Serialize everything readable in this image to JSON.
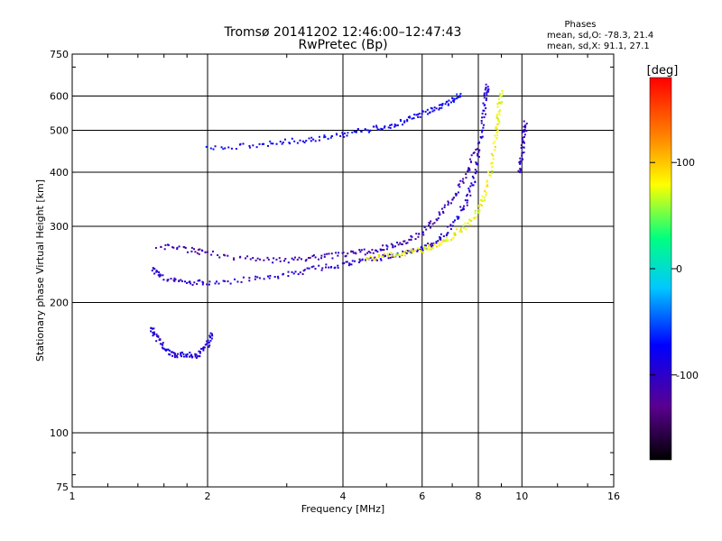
{
  "header": {
    "title": "Tromsø 20141202 12:46:00–12:47:43",
    "subtitle": "RwPretec (Bp)",
    "stats_title": "Phases",
    "stats_o": "mean, sd,O: -78.3, 21.4",
    "stats_x": "mean, sd,X:  91.1, 27.1"
  },
  "colorbar": {
    "unit_label": "[deg]",
    "ticks": [
      {
        "value": 100,
        "label": "100"
      },
      {
        "value": 0,
        "label": "0"
      },
      {
        "value": -100,
        "label": "-100"
      }
    ],
    "range": [
      -180,
      180
    ]
  },
  "chart_data": {
    "type": "scatter",
    "title": "Tromsø 20141202 12:46:00–12:47:43",
    "subtitle": "RwPretec (Bp)",
    "xlabel": "Frequency [MHz]",
    "ylabel": "Stationary phase Virtual Height [km]",
    "xscale": "log",
    "yscale": "log",
    "xlim": [
      1,
      16
    ],
    "ylim": [
      75,
      750
    ],
    "xticks": [
      1,
      2,
      4,
      6,
      8,
      10,
      16
    ],
    "xtick_labels": [
      "1",
      "2",
      "4",
      "6",
      "8",
      "10",
      "16"
    ],
    "yticks": [
      75,
      100,
      200,
      300,
      400,
      500,
      600,
      750
    ],
    "ytick_labels": [
      "75",
      "100",
      "200",
      "300",
      "400",
      "500",
      "600",
      "750"
    ],
    "grid": true,
    "colorbar_label": "[deg]",
    "color_scale": [
      "#000000",
      "#5a0090",
      "#0000ff",
      "#00c8ff",
      "#00ff80",
      "#ffff00",
      "#ff8000",
      "#ff0000"
    ],
    "traces": [
      {
        "id": "E-region echoes",
        "phase": -90,
        "points": [
          [
            1.5,
            175
          ],
          [
            1.55,
            165
          ],
          [
            1.62,
            155
          ],
          [
            1.7,
            150
          ],
          [
            1.8,
            152
          ],
          [
            1.9,
            150
          ],
          [
            2.0,
            160
          ],
          [
            2.05,
            170
          ]
        ]
      },
      {
        "id": "F2 O-mode lower",
        "phase": -95,
        "points": [
          [
            1.5,
            240
          ],
          [
            1.6,
            228
          ],
          [
            1.8,
            222
          ],
          [
            2.0,
            222
          ],
          [
            2.5,
            226
          ],
          [
            3.0,
            232
          ],
          [
            3.5,
            240
          ],
          [
            4.0,
            245
          ],
          [
            4.5,
            250
          ],
          [
            5.0,
            255
          ],
          [
            5.5,
            260
          ],
          [
            6.0,
            266
          ],
          [
            6.5,
            278
          ],
          [
            7.0,
            300
          ],
          [
            7.5,
            340
          ],
          [
            7.8,
            380
          ],
          [
            8.0,
            440
          ],
          [
            8.2,
            520
          ],
          [
            8.3,
            600
          ],
          [
            8.4,
            640
          ]
        ]
      },
      {
        "id": "F2 O-mode upper",
        "phase": -110,
        "points": [
          [
            1.55,
            270
          ],
          [
            1.8,
            265
          ],
          [
            2.0,
            260
          ],
          [
            2.5,
            252
          ],
          [
            3.0,
            250
          ],
          [
            3.5,
            255
          ],
          [
            4.0,
            258
          ],
          [
            4.5,
            262
          ],
          [
            5.0,
            268
          ],
          [
            5.5,
            275
          ],
          [
            6.0,
            290
          ],
          [
            6.5,
            315
          ],
          [
            7.0,
            345
          ],
          [
            7.5,
            390
          ],
          [
            7.9,
            450
          ]
        ]
      },
      {
        "id": "F2 X-mode",
        "phase": 80,
        "points": [
          [
            4.5,
            252
          ],
          [
            5.0,
            256
          ],
          [
            5.5,
            260
          ],
          [
            6.0,
            264
          ],
          [
            6.5,
            272
          ],
          [
            7.0,
            285
          ],
          [
            7.5,
            300
          ],
          [
            8.0,
            325
          ],
          [
            8.3,
            360
          ],
          [
            8.6,
            420
          ],
          [
            8.8,
            500
          ],
          [
            8.9,
            560
          ],
          [
            9.0,
            620
          ]
        ]
      },
      {
        "id": "Multi-hop echoes",
        "phase": -80,
        "points": [
          [
            2.0,
            455
          ],
          [
            2.5,
            462
          ],
          [
            3.0,
            470
          ],
          [
            3.5,
            478
          ],
          [
            4.0,
            488
          ],
          [
            4.5,
            500
          ],
          [
            5.0,
            510
          ],
          [
            5.5,
            525
          ],
          [
            6.0,
            545
          ],
          [
            6.5,
            565
          ],
          [
            7.0,
            585
          ],
          [
            7.3,
            610
          ]
        ]
      },
      {
        "id": "Upper branch 10 MHz",
        "phase": -100,
        "points": [
          [
            9.9,
            400
          ],
          [
            10.0,
            440
          ],
          [
            10.1,
            490
          ],
          [
            10.2,
            520
          ]
        ]
      }
    ]
  }
}
